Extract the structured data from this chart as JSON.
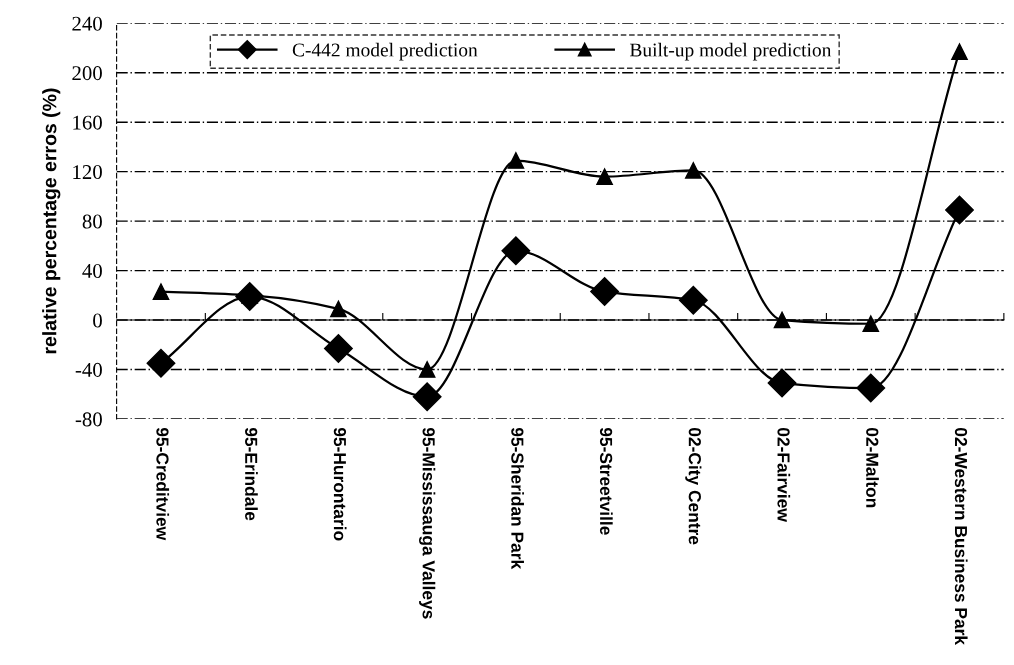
{
  "chart_data": {
    "type": "line",
    "ylabel": "relative percentage erros (%)",
    "categories": [
      "95-Creditview",
      "95-Erindale",
      "95-Hurontario",
      "95-Mississauga Valleys",
      "95-Sheridan Park",
      "95-Streetville",
      "02-City Centre",
      "02-Fairview",
      "02-Malton",
      "02-Western Business Park"
    ],
    "series": [
      {
        "name": "C-442 model prediction",
        "color": "#000000",
        "marker": "diamond",
        "values": [
          -35,
          19,
          -23,
          -62,
          56,
          23,
          16,
          -51,
          -55,
          89
        ]
      },
      {
        "name": "Built-up model prediction",
        "color": "#000000",
        "marker": "triangle",
        "values": [
          23,
          20,
          9,
          -40,
          129,
          116,
          121,
          0,
          -3,
          217
        ]
      }
    ],
    "ylim": [
      -80,
      240
    ],
    "yticks": [
      -80,
      -40,
      0,
      40,
      80,
      120,
      160,
      200,
      240
    ],
    "grid": "y",
    "legend": "top",
    "line_style": "solid"
  }
}
